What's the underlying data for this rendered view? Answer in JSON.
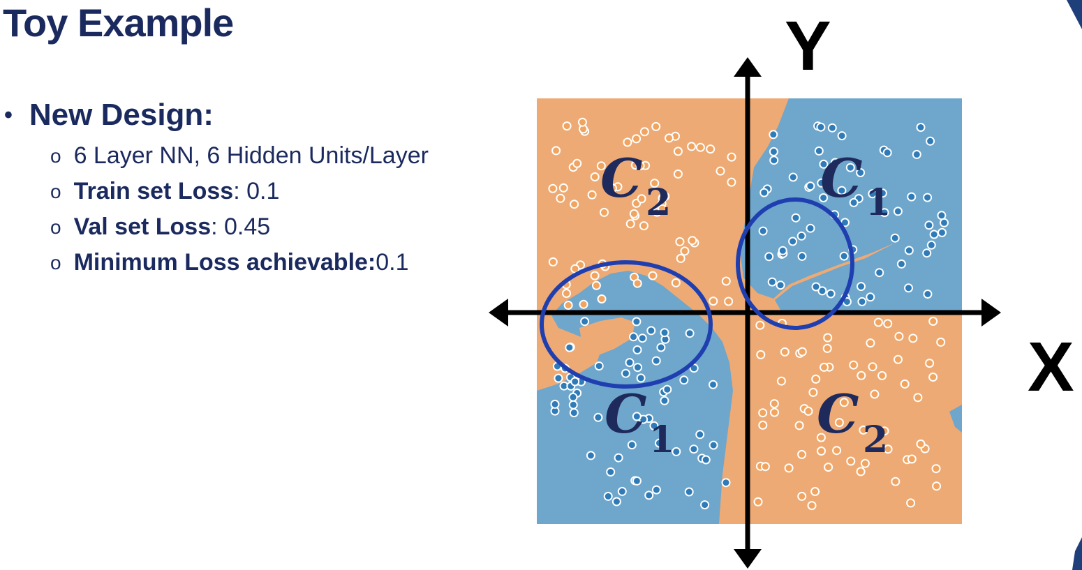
{
  "slide": {
    "title": "Toy Example",
    "bullet": "New Design:",
    "bullet_marker": "•",
    "sub_marker": "o",
    "items": [
      {
        "bold": "",
        "text": "6 Layer NN, 6 Hidden Units/Layer"
      },
      {
        "bold": "Train set Loss",
        "text": ": 0.1"
      },
      {
        "bold": "Val set Loss",
        "text": ": 0.45"
      },
      {
        "bold": "Minimum Loss achievable:",
        "text": " 0.1"
      }
    ]
  },
  "diagram": {
    "axis_x_label": "X",
    "axis_y_label": "Y",
    "quadrant_labels": [
      {
        "letter": "C",
        "sub": "2",
        "quadrant": "top-left"
      },
      {
        "letter": "C",
        "sub": "1",
        "quadrant": "top-right"
      },
      {
        "letter": "C",
        "sub": "1",
        "quadrant": "bottom-left"
      },
      {
        "letter": "C",
        "sub": "2",
        "quadrant": "bottom-right"
      }
    ],
    "colors": {
      "class_orange": "#eeaa74",
      "class_blue": "#6ea6cc",
      "point_orange": "#e8873a",
      "point_blue": "#2f7bb8",
      "highlight_ring": "#1f3fb0",
      "axis": "#000000",
      "text": "#1b2a5e"
    }
  }
}
